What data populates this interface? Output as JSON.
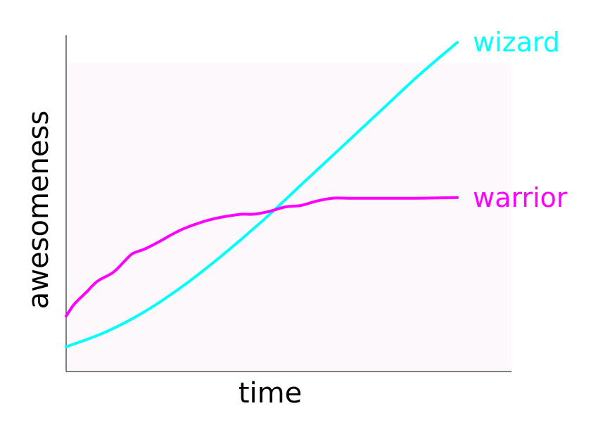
{
  "chart_data": {
    "type": "line",
    "title": "",
    "xlabel": "time",
    "ylabel": "awesomeness",
    "xlim": [
      0,
      100
    ],
    "ylim": [
      0,
      100
    ],
    "grid": false,
    "legend": "inline labels at line ends",
    "series": [
      {
        "name": "wizard",
        "color": "#00ffff",
        "x": [
          0,
          10,
          20,
          30,
          40,
          50,
          60,
          70,
          80,
          90,
          100
        ],
        "y": [
          8.5,
          13.5,
          20.5,
          29.5,
          40,
          51.5,
          64,
          76.5,
          89,
          101.5,
          113
        ]
      },
      {
        "name": "warrior",
        "color": "#ff00ff",
        "x": [
          0,
          2,
          5,
          8,
          12,
          15,
          17,
          20,
          23,
          27,
          30,
          34,
          38,
          42,
          45,
          48,
          52,
          56,
          60,
          64,
          68,
          72,
          76,
          80,
          90,
          100
        ],
        "y": [
          19,
          23,
          27,
          31,
          34,
          38,
          40.5,
          42,
          44,
          47,
          49,
          51,
          52.5,
          53.5,
          54,
          54,
          55,
          56.5,
          57,
          58.5,
          59.5,
          59.5,
          59.5,
          59.5,
          59.5,
          59.7
        ]
      }
    ]
  }
}
